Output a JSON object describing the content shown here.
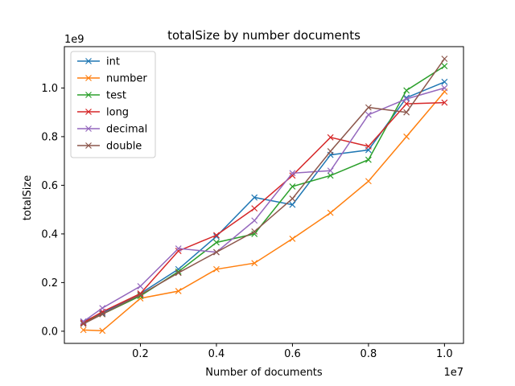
{
  "chart_data": {
    "type": "line",
    "title": "totalSize by number documents",
    "xlabel": "Number of documents",
    "ylabel": "totalSize",
    "x_scale_label": "1e7",
    "y_scale_label": "1e9",
    "xlim": [
      0,
      10500000
    ],
    "ylim": [
      -50000000,
      1170000000
    ],
    "x_ticks": [
      2000000,
      4000000,
      6000000,
      8000000,
      10000000
    ],
    "x_tick_labels": [
      "0.2",
      "0.4",
      "0.6",
      "0.8",
      "1.0"
    ],
    "y_ticks": [
      0,
      200000000,
      400000000,
      600000000,
      800000000,
      1000000000
    ],
    "y_tick_labels": [
      "0.0",
      "0.2",
      "0.4",
      "0.6",
      "0.8",
      "1.0"
    ],
    "grid": false,
    "legend_position": "top-left",
    "marker": "x",
    "x": [
      500000,
      1000000,
      2000000,
      3000000,
      4000000,
      5000000,
      6000000,
      7000000,
      8000000,
      9000000,
      10000000
    ],
    "series": [
      {
        "name": "int",
        "color": "#1f77b4",
        "values": [
          40000000,
          75000000,
          155000000,
          255000000,
          390000000,
          550000000,
          520000000,
          725000000,
          745000000,
          960000000,
          1025000000
        ]
      },
      {
        "name": "number",
        "color": "#ff7f0e",
        "values": [
          5000000,
          2000000,
          135000000,
          165000000,
          255000000,
          280000000,
          380000000,
          487000000,
          617000000,
          800000000,
          985000000
        ]
      },
      {
        "name": "test",
        "color": "#2ca02c",
        "values": [
          35000000,
          70000000,
          145000000,
          245000000,
          365000000,
          400000000,
          595000000,
          640000000,
          705000000,
          990000000,
          1090000000
        ]
      },
      {
        "name": "long",
        "color": "#d62728",
        "values": [
          35000000,
          80000000,
          155000000,
          330000000,
          395000000,
          505000000,
          640000000,
          797000000,
          760000000,
          935000000,
          940000000
        ]
      },
      {
        "name": "decimal",
        "color": "#9467bd",
        "values": [
          40000000,
          95000000,
          185000000,
          340000000,
          325000000,
          455000000,
          650000000,
          660000000,
          890000000,
          955000000,
          1000000000
        ]
      },
      {
        "name": "double",
        "color": "#8c564b",
        "values": [
          30000000,
          70000000,
          150000000,
          240000000,
          325000000,
          410000000,
          545000000,
          740000000,
          920000000,
          900000000,
          1120000000
        ]
      }
    ]
  }
}
